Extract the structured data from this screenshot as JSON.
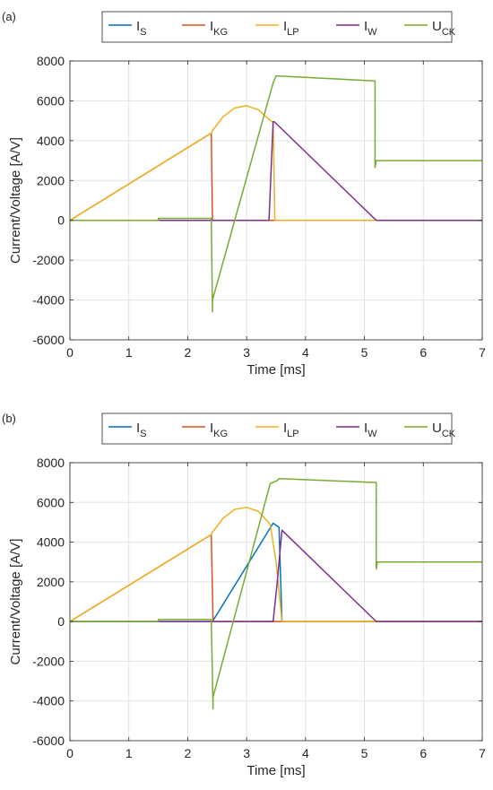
{
  "chart_data": [
    {
      "type": "line",
      "panel_label": "(a)",
      "xlabel": "Time [ms]",
      "ylabel": "Current/Voltage [A/V]",
      "xlim": [
        0,
        7
      ],
      "ylim": [
        -6000,
        8000
      ],
      "xticks": [
        0,
        1,
        2,
        3,
        4,
        5,
        6,
        7
      ],
      "yticks": [
        -6000,
        -4000,
        -2000,
        0,
        2000,
        4000,
        6000,
        8000
      ],
      "grid": true,
      "legend_position": "top, horizontal, above plot",
      "series": [
        {
          "name": "I_S",
          "color": "#0072BD",
          "x": [
            0,
            2.4,
            2.42,
            7
          ],
          "y": [
            0,
            0,
            0,
            0
          ]
        },
        {
          "name": "I_KG",
          "color": "#D95319",
          "x": [
            0,
            2.4,
            2.42,
            7
          ],
          "y": [
            0,
            4380,
            0,
            0
          ]
        },
        {
          "name": "I_LP",
          "color": "#EDB120",
          "x": [
            0,
            2.4,
            2.42,
            2.6,
            2.8,
            3.0,
            3.2,
            3.35,
            3.45,
            3.48,
            7
          ],
          "y": [
            0,
            4380,
            4500,
            5200,
            5650,
            5750,
            5550,
            5150,
            4900,
            0,
            0
          ]
        },
        {
          "name": "I_W",
          "color": "#7E2F8E",
          "x": [
            0,
            3.38,
            3.45,
            3.47,
            5.2,
            7
          ],
          "y": [
            0,
            0,
            4950,
            4950,
            0,
            0
          ]
        },
        {
          "name": "U_CK",
          "color": "#77AC30",
          "x": [
            0,
            1.5,
            1.5,
            2.4,
            2.42,
            2.42,
            3.45,
            3.5,
            5.18,
            5.18,
            5.2,
            5.2,
            7
          ],
          "y": [
            0,
            0,
            100,
            100,
            -4600,
            -4000,
            6900,
            7250,
            7000,
            2650,
            3000,
            3000,
            3000
          ]
        }
      ]
    },
    {
      "type": "line",
      "panel_label": "(b)",
      "xlabel": "Time [ms]",
      "ylabel": "Current/Voltage [A/V]",
      "xlim": [
        0,
        7
      ],
      "ylim": [
        -6000,
        8000
      ],
      "xticks": [
        0,
        1,
        2,
        3,
        4,
        5,
        6,
        7
      ],
      "yticks": [
        -6000,
        -4000,
        -2000,
        0,
        2000,
        4000,
        6000,
        8000
      ],
      "grid": true,
      "legend_position": "top, horizontal, above plot",
      "series": [
        {
          "name": "I_S",
          "color": "#0072BD",
          "x": [
            0,
            2.4,
            2.42,
            3.45,
            3.55,
            3.6,
            7
          ],
          "y": [
            0,
            0,
            0,
            4950,
            4750,
            0,
            0
          ]
        },
        {
          "name": "I_KG",
          "color": "#D95319",
          "x": [
            0,
            2.4,
            2.43,
            7
          ],
          "y": [
            0,
            4380,
            0,
            0
          ]
        },
        {
          "name": "I_LP",
          "color": "#EDB120",
          "x": [
            0,
            2.4,
            2.42,
            2.6,
            2.8,
            3.0,
            3.2,
            3.4,
            3.5,
            3.6,
            3.62,
            7
          ],
          "y": [
            0,
            4380,
            4500,
            5200,
            5650,
            5750,
            5550,
            4900,
            3000,
            0,
            0,
            0
          ]
        },
        {
          "name": "I_W",
          "color": "#7E2F8E",
          "x": [
            0,
            3.45,
            3.52,
            3.6,
            5.2,
            7
          ],
          "y": [
            0,
            0,
            2000,
            4600,
            0,
            0
          ]
        },
        {
          "name": "U_CK",
          "color": "#77AC30",
          "x": [
            0,
            1.5,
            1.5,
            2.4,
            2.43,
            2.43,
            3.4,
            3.52,
            3.55,
            5.2,
            5.2,
            5.22,
            5.22,
            7
          ],
          "y": [
            0,
            0,
            100,
            100,
            -4400,
            -3800,
            6950,
            7100,
            7200,
            7000,
            2650,
            3000,
            3000,
            3000
          ]
        }
      ]
    }
  ]
}
